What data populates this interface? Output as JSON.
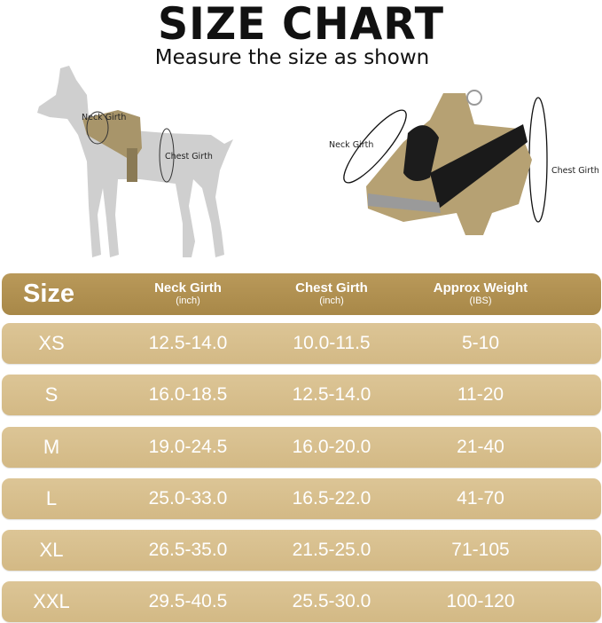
{
  "title": "SIZE CHART",
  "subtitle": "Measure the size as shown",
  "dog_labels": {
    "neck": "Neck Girth",
    "chest": "Chest Girth"
  },
  "harness_labels": {
    "neck": "Neck Girth",
    "chest": "Chest Girth"
  },
  "colors": {
    "header": "#B08F4F",
    "row": "#D8C08E",
    "text": "#FFFFFF"
  },
  "table": {
    "headers": [
      {
        "label": "Size",
        "unit": ""
      },
      {
        "label": "Neck Girth",
        "unit": "(inch)"
      },
      {
        "label": "Chest Girth",
        "unit": "(inch)"
      },
      {
        "label": "Approx Weight",
        "unit": "(IBS)"
      }
    ],
    "rows": [
      [
        "XS",
        "12.5-14.0",
        "10.0-11.5",
        "5-10"
      ],
      [
        "S",
        "16.0-18.5",
        "12.5-14.0",
        "11-20"
      ],
      [
        "M",
        "19.0-24.5",
        "16.0-20.0",
        "21-40"
      ],
      [
        "L",
        "25.0-33.0",
        "16.5-22.0",
        "41-70"
      ],
      [
        "XL",
        "26.5-35.0",
        "21.5-25.0",
        "71-105"
      ],
      [
        "XXL",
        "29.5-40.5",
        "25.5-30.0",
        "100-120"
      ]
    ]
  }
}
